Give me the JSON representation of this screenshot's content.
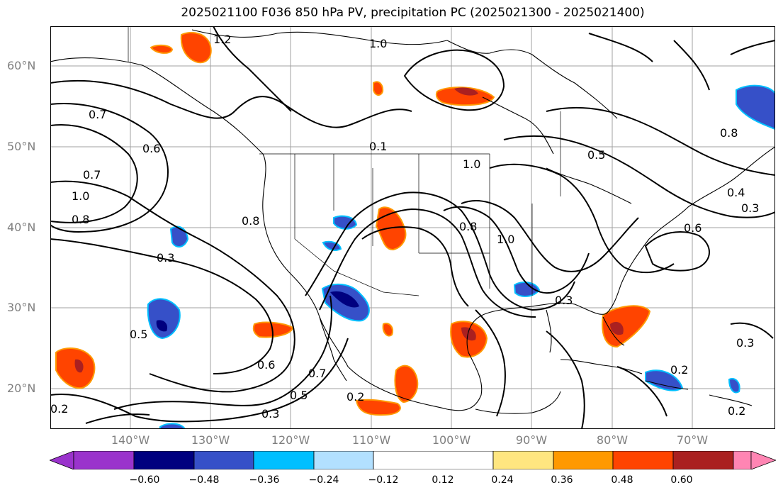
{
  "title": "2025021100 F036 850 hPa PV, precipitation PC (2025021300 - 2025021400)",
  "lat_labels": [
    "60°N",
    "50°N",
    "40°N",
    "30°N",
    "20°N"
  ],
  "lon_labels": [
    "140°W",
    "130°W",
    "120°W",
    "110°W",
    "100°W",
    "90°W",
    "80°W",
    "70°W"
  ],
  "contour_labels": [
    "1.2",
    "1.0",
    "0.8",
    "0.7",
    "0.6",
    "0.5",
    "0.4",
    "0.3",
    "0.2",
    "0.1"
  ],
  "colorbar": {
    "ticks": [
      "−0.60",
      "−0.48",
      "−0.36",
      "−0.24",
      "−0.12",
      "0.12",
      "0.24",
      "0.36",
      "0.48",
      "0.60"
    ],
    "colors": [
      "#9a33cc",
      "#00007f",
      "#3650c8",
      "#00bfff",
      "#b2e0ff",
      "#ffffff",
      "#ffe680",
      "#ff9900",
      "#ff4400",
      "#aa2020",
      "#ff85b3"
    ]
  },
  "colors": {
    "coast": "#000000",
    "grid": "#a0a0a0",
    "axis_text": "#7f7f7f"
  }
}
